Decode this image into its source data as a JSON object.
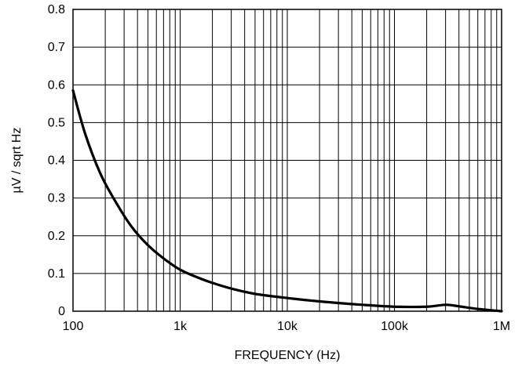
{
  "chart_data": {
    "type": "line",
    "title": "",
    "xlabel": "FREQUENCY (Hz)",
    "ylabel": "µV / sqrt Hz",
    "x_scale": "log",
    "xlim": [
      100,
      1000000
    ],
    "ylim": [
      0,
      0.8
    ],
    "grid": true,
    "legend": "none",
    "x_tick_labels": [
      {
        "value": 100,
        "label": "100"
      },
      {
        "value": 1000,
        "label": "1k"
      },
      {
        "value": 10000,
        "label": "10k"
      },
      {
        "value": 100000,
        "label": "100k"
      },
      {
        "value": 1000000,
        "label": "1M"
      }
    ],
    "y_tick_labels": [
      {
        "value": 0,
        "label": "0"
      },
      {
        "value": 0.1,
        "label": "0.1"
      },
      {
        "value": 0.2,
        "label": "0.2"
      },
      {
        "value": 0.3,
        "label": "0.3"
      },
      {
        "value": 0.4,
        "label": "0.4"
      },
      {
        "value": 0.5,
        "label": "0.5"
      },
      {
        "value": 0.6,
        "label": "0.6"
      },
      {
        "value": 0.7,
        "label": "0.7"
      },
      {
        "value": 0.8,
        "label": "0.8"
      }
    ],
    "series": [
      {
        "color": "#000000",
        "points": [
          {
            "x": 100,
            "y": 0.585
          },
          {
            "x": 130,
            "y": 0.47
          },
          {
            "x": 180,
            "y": 0.365
          },
          {
            "x": 250,
            "y": 0.29
          },
          {
            "x": 350,
            "y": 0.225
          },
          {
            "x": 500,
            "y": 0.175
          },
          {
            "x": 700,
            "y": 0.14
          },
          {
            "x": 1000,
            "y": 0.11
          },
          {
            "x": 1500,
            "y": 0.088
          },
          {
            "x": 2000,
            "y": 0.075
          },
          {
            "x": 3000,
            "y": 0.06
          },
          {
            "x": 5000,
            "y": 0.046
          },
          {
            "x": 10000,
            "y": 0.035
          },
          {
            "x": 20000,
            "y": 0.026
          },
          {
            "x": 50000,
            "y": 0.017
          },
          {
            "x": 100000,
            "y": 0.012
          },
          {
            "x": 200000,
            "y": 0.012
          },
          {
            "x": 300000,
            "y": 0.017
          },
          {
            "x": 400000,
            "y": 0.013
          },
          {
            "x": 600000,
            "y": 0.006
          },
          {
            "x": 1000000,
            "y": 0
          }
        ]
      }
    ]
  }
}
